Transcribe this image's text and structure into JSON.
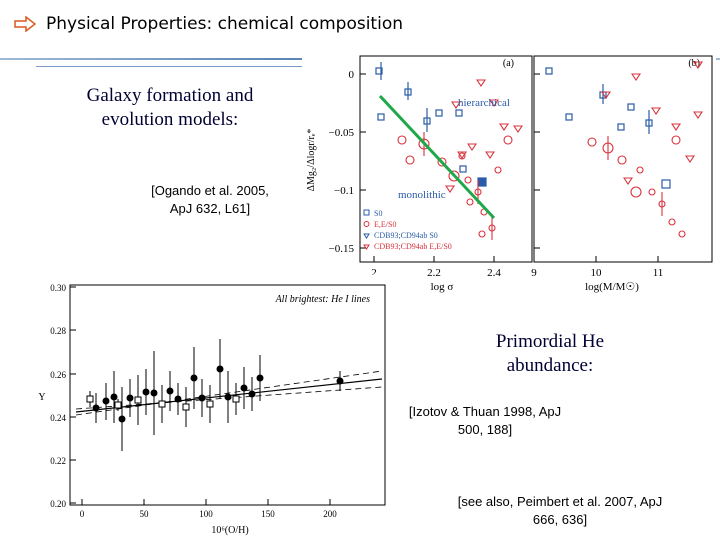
{
  "slide": {
    "title": "Physical Properties: chemical composition",
    "title_icon": "hollow-right-arrow-icon",
    "accent_color": "#4f7fb3"
  },
  "galaxy_text": "Galaxy formation and evolution models:",
  "galaxy_ref": "[Ogando et al. 2005, ApJ 632, L61]",
  "primordial_text": "Primordial He abundance:",
  "izotov_ref": "[Izotov & Thuan 1998, ApJ 500, 188]",
  "peimbert_ref": "[see also, Peimbert et al. 2007, ApJ 666, 636]",
  "figure_top": {
    "panel_a_label": "(a)",
    "panel_b_label": "(b)",
    "ylabel": "ΔMg₂/Δlogr/rₑ*",
    "xlabel_a": "log σ",
    "xlabel_b": "log(M/M☉)",
    "yticks": [
      "0",
      "−0.05",
      "−0.1",
      "−0.15"
    ],
    "xticks_a": [
      "2",
      "2.2",
      "2.4"
    ],
    "xticks_b": [
      "9",
      "10",
      "11"
    ],
    "annotation_hierarchical": "hierarchical",
    "annotation_monolithic": "monolithic",
    "legend": [
      "S0",
      "E,E/S0",
      "CDB93;CD94ab S0",
      "CDB93;CD94ab E,E/S0"
    ],
    "line_color": "#1ea84a",
    "colors": {
      "blue": "#2a5ba8",
      "red": "#d8323c"
    }
  },
  "figure_bottom": {
    "annotation": "All brightest: He I lines",
    "ylabel": "Y",
    "xlabel": "10⁶(O/H)",
    "yticks": [
      "0.30",
      "0.28",
      "0.26",
      "0.24",
      "0.22",
      "0.20"
    ],
    "xticks": [
      "0",
      "50",
      "100",
      "150",
      "200"
    ]
  }
}
